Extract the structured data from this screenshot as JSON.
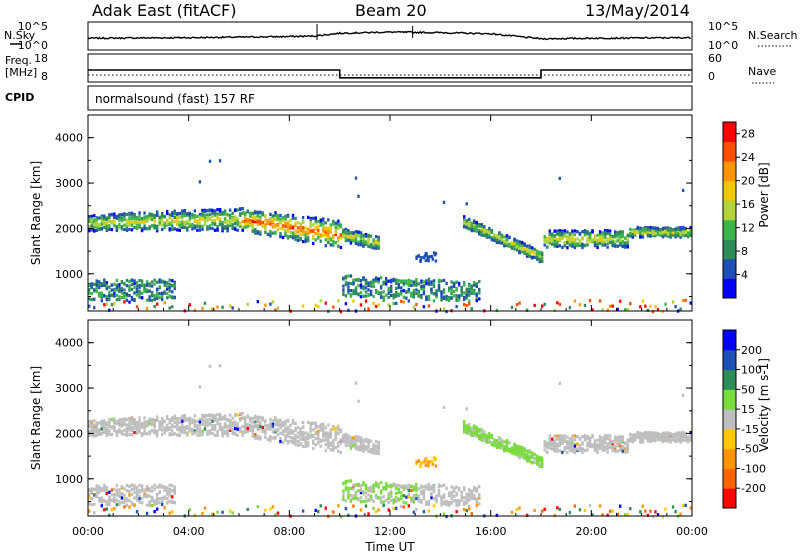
{
  "header": {
    "radar": "Adak East (fitACF)",
    "beam": "Beam 20",
    "date": "13/May/2014"
  },
  "mode_text": "normalsound (fast) 157 RF",
  "strip_labels": {
    "nsky": "N.Sky",
    "nsearch": "N.Search",
    "freq_line1": "Freq.",
    "freq_line2": "[MHz]",
    "nave": "Nave",
    "cpid": "CPID"
  },
  "strip_ticks": {
    "noise_top": "10^5",
    "noise_bottom": "10^0",
    "freq_top": "18",
    "freq_bottom": "8",
    "nave_top": "60",
    "nave_bottom": "0"
  },
  "colors": {
    "power_scale": [
      "#0000ff",
      "#1e50b4",
      "#2f8b57",
      "#3cb44b",
      "#b4d23c",
      "#f0c800",
      "#ff9600",
      "#ff5000",
      "#ff0000"
    ],
    "velocity_scale": [
      "#ff0000",
      "#ff6400",
      "#ff9600",
      "#ffc800",
      "#bebebe",
      "#78dc3c",
      "#2f8b57",
      "#1e50b4",
      "#0000ff"
    ],
    "ground_grey": "#bebebe"
  },
  "chart_data": [
    {
      "type": "line",
      "title": "N.Sky / N.Search",
      "x": [
        0,
        4,
        8,
        9,
        10,
        12,
        14,
        16,
        18,
        20,
        24
      ],
      "series": [
        {
          "name": "N.Sky",
          "values": [
            2.1,
            2.2,
            2.4,
            2.5,
            3.0,
            3.2,
            3.1,
            2.9,
            2.0,
            2.1,
            2.2
          ]
        }
      ],
      "xlim": [
        0,
        24
      ]
    },
    {
      "type": "line",
      "title": "Freq. / Nave",
      "x": [
        0,
        10,
        10,
        18,
        18,
        24
      ],
      "series": [
        {
          "name": "Freq.",
          "values": [
            12.3,
            12.3,
            9.5,
            9.5,
            12.3,
            12.3
          ]
        }
      ],
      "ylim": [
        8,
        18
      ]
    },
    {
      "type": "heatmap",
      "title": "",
      "xlabel": "",
      "ylabel": "Slant Range [km]",
      "ylim": [
        180,
        4500
      ],
      "yticks": [
        "1000",
        "2000",
        "3000",
        "4000"
      ],
      "colorbar_label": "Power [dB]",
      "colorbar_ticks": [
        "4",
        "8",
        "12",
        "16",
        "20",
        "24",
        "28"
      ],
      "colorbar_range": [
        0,
        30
      ]
    },
    {
      "type": "heatmap",
      "title": "",
      "xlabel": "Time UT",
      "ylabel": "Slant Range [km]",
      "ylim": [
        180,
        4500
      ],
      "yticks": [
        "1000",
        "2000",
        "3000",
        "4000"
      ],
      "xticks": [
        "00:00",
        "04:00",
        "08:00",
        "12:00",
        "16:00",
        "20:00",
        "00:00"
      ],
      "xlim": [
        0,
        24
      ],
      "colorbar_label": "Velocity [m s-1]",
      "colorbar_ticks": [
        "200",
        "100",
        "50",
        "15",
        "-15",
        "-50",
        "-100",
        "-200"
      ]
    }
  ]
}
